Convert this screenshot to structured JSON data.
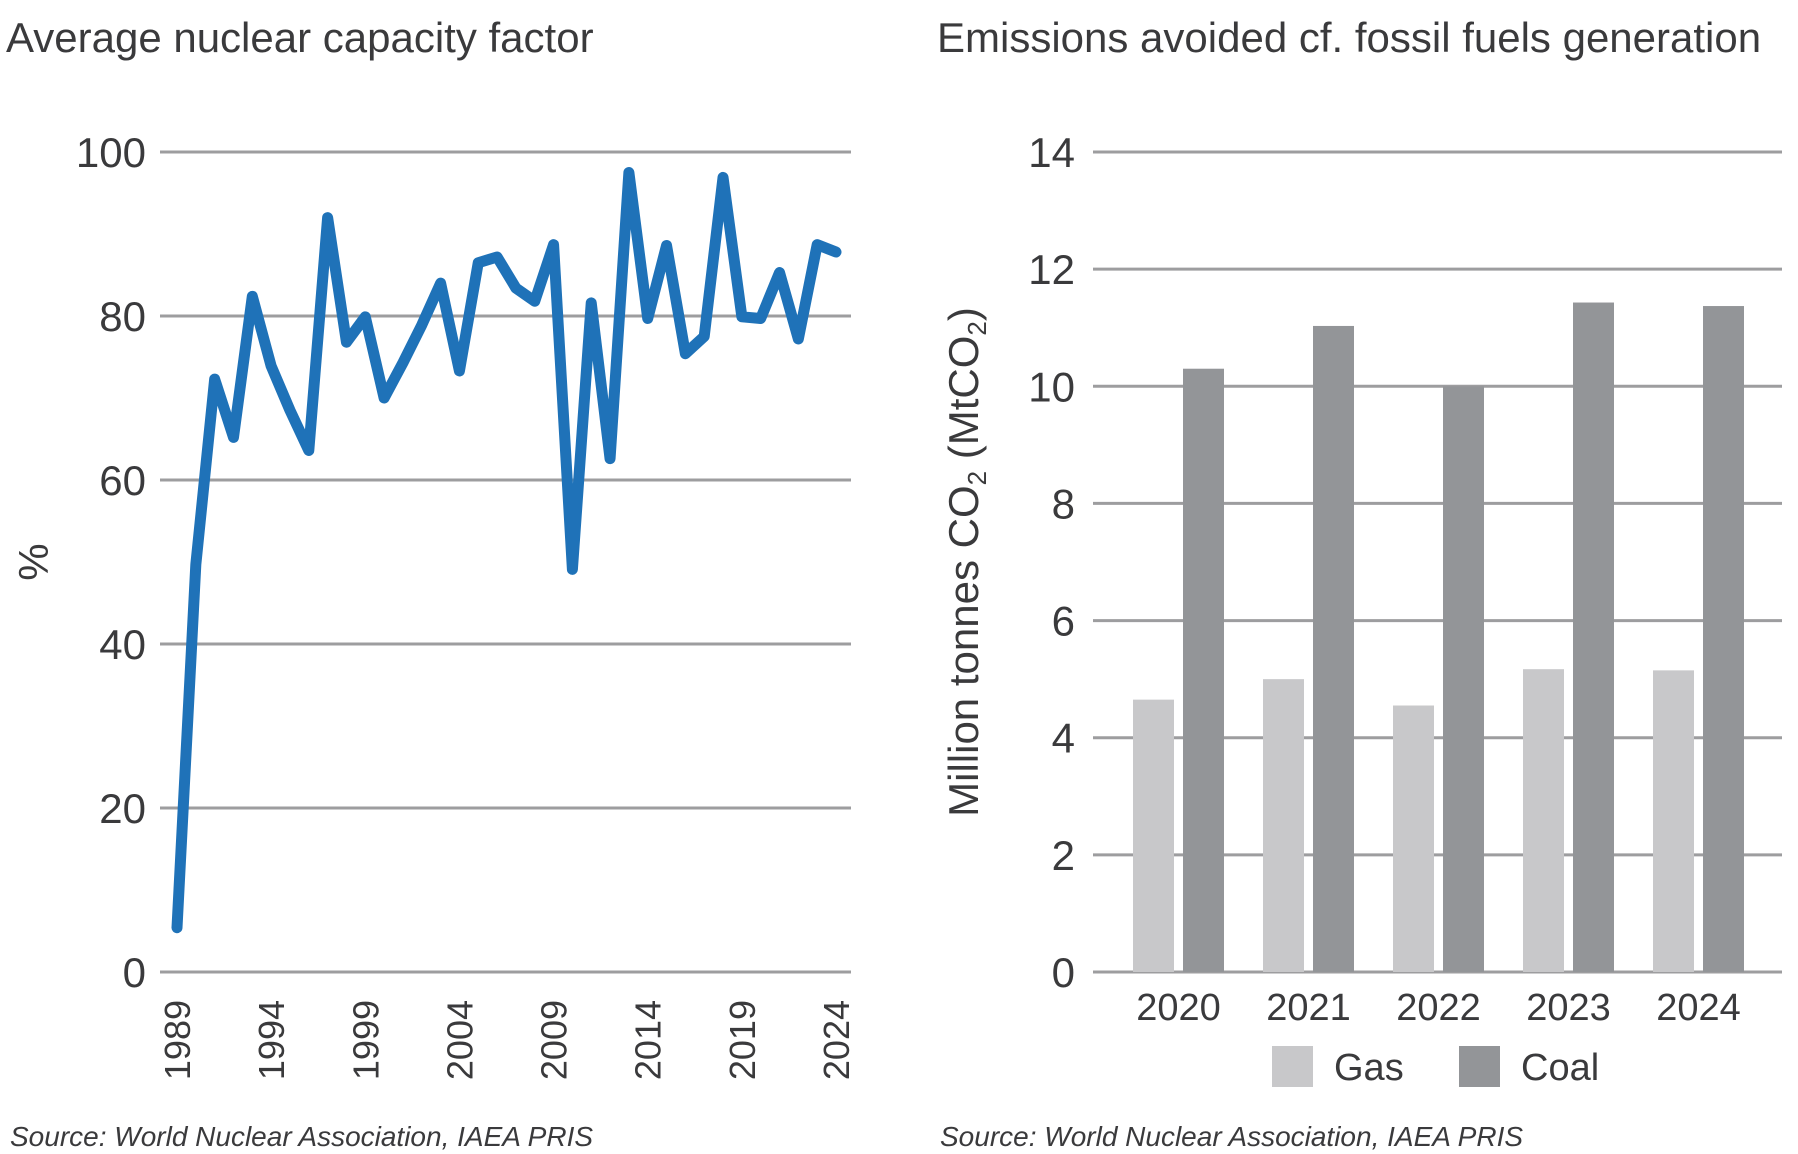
{
  "chart_data": [
    {
      "type": "line",
      "title": "Average nuclear capacity factor",
      "ylabel": "%",
      "xlabel": "",
      "ylim": [
        0,
        100
      ],
      "yticks": [
        0,
        20,
        40,
        60,
        80,
        100
      ],
      "xticks": [
        1989,
        1994,
        1999,
        2004,
        2009,
        2014,
        2019,
        2024
      ],
      "grid": "horizontal",
      "color": "#1f72b8",
      "x": [
        1989,
        1990,
        1991,
        1992,
        1993,
        1994,
        1995,
        1996,
        1997,
        1998,
        1999,
        2000,
        2001,
        2002,
        2003,
        2004,
        2005,
        2006,
        2007,
        2008,
        2009,
        2010,
        2011,
        2012,
        2013,
        2014,
        2015,
        2016,
        2017,
        2018,
        2019,
        2020,
        2021,
        2022,
        2023,
        2024
      ],
      "values": [
        5.4,
        49.7,
        72.3,
        65.2,
        82.4,
        73.9,
        68.5,
        63.6,
        92.0,
        76.8,
        79.9,
        70.0,
        74.3,
        78.9,
        84.0,
        73.3,
        86.5,
        87.2,
        83.4,
        81.8,
        88.7,
        49.1,
        81.6,
        62.6,
        97.5,
        79.7,
        88.6,
        75.4,
        77.5,
        96.9,
        79.9,
        79.7,
        85.3,
        77.2,
        88.7,
        87.8
      ],
      "source": "Source: World Nuclear Association, IAEA PRIS"
    },
    {
      "type": "bar",
      "title": "Emissions avoided cf. fossil fuels generation",
      "ylabel": "Million tonnes CO2 (MtCO2)",
      "ylim": [
        0,
        14
      ],
      "yticks": [
        0,
        2,
        4,
        6,
        8,
        10,
        12,
        14
      ],
      "grid": "horizontal",
      "legend": "bottom",
      "categories": [
        "2020",
        "2021",
        "2022",
        "2023",
        "2024"
      ],
      "series": [
        {
          "name": "Gas",
          "color": "#c8c8ca",
          "values": [
            4.65,
            5.0,
            4.55,
            5.17,
            5.15
          ]
        },
        {
          "name": "Coal",
          "color": "#939598",
          "values": [
            10.3,
            11.03,
            10.0,
            11.43,
            11.37
          ]
        }
      ],
      "source": "Source: World Nuclear Association, IAEA PRIS"
    }
  ]
}
